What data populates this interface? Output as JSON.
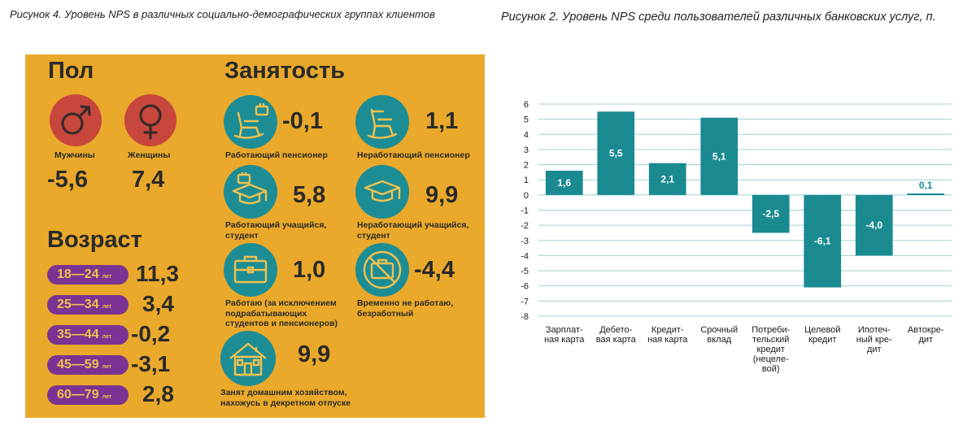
{
  "captions": {
    "left": "Рисунок 4. Уровень NPS в различных социально-демографических группах клиентов",
    "right": "Рисунок 2. Уровень NPS среди пользователей различных банковских услуг, п."
  },
  "gender": {
    "title": "Пол",
    "items": [
      {
        "label": "Мужчины",
        "value": "-5,6",
        "icon": "male-icon"
      },
      {
        "label": "Женщины",
        "value": "7,4",
        "icon": "female-icon"
      }
    ]
  },
  "age": {
    "title": "Возраст",
    "unit": "лет",
    "items": [
      {
        "range": "18—24",
        "value": "11,3"
      },
      {
        "range": "25—34",
        "value": "3,4"
      },
      {
        "range": "35—44",
        "value": "-0,2"
      },
      {
        "range": "45—59",
        "value": "-3,1"
      },
      {
        "range": "60—79",
        "value": "2,8"
      }
    ]
  },
  "employment": {
    "title": "Занятость",
    "items": [
      {
        "label": [
          "Работающий пенсионер"
        ],
        "value": "-0,1",
        "icon": "rocking-chair-briefcase-icon"
      },
      {
        "label": [
          "Неработающий пенсионер"
        ],
        "value": "1,1",
        "icon": "rocking-chair-icon"
      },
      {
        "label": [
          "Работающий учащийся,",
          "студент"
        ],
        "value": "5,8",
        "icon": "graduation-cap-briefcase-icon"
      },
      {
        "label": [
          "Неработающий учащийся,",
          "студент"
        ],
        "value": "9,9",
        "icon": "graduation-cap-icon"
      },
      {
        "label": [
          "Работаю (за исключением",
          "подрабатывающих",
          "студентов и пенсионеров)"
        ],
        "value": "1,0",
        "icon": "briefcase-icon"
      },
      {
        "label": [
          "Временно не работаю,",
          "безработный"
        ],
        "value": "-4,4",
        "icon": "crossed-briefcase-icon"
      },
      {
        "label": [
          "Занят домашним хозяйством,",
          "нахожусь в декретном отпуске"
        ],
        "value": "9,9",
        "icon": "house-icon"
      }
    ]
  },
  "colors": {
    "panel": "#eaa92a",
    "gender_circle": "#c8473d",
    "employment_circle": "#1d8d95",
    "age_pill": "#7a3392",
    "bar": "#1a8a91"
  },
  "chart_data": {
    "type": "bar",
    "title": "",
    "xlabel": "",
    "ylabel": "",
    "ylim": [
      -8,
      6
    ],
    "yticks": [
      6,
      5,
      4,
      3,
      2,
      1,
      0,
      -1,
      -2,
      -3,
      -4,
      -5,
      -6,
      -7,
      -8
    ],
    "grid": true,
    "categories": [
      [
        "Зарплат-",
        "ная карта"
      ],
      [
        "Дебето-",
        "вая карта"
      ],
      [
        "Кредит-",
        "ная карта"
      ],
      [
        "Срочный",
        "вклад"
      ],
      [
        "Потреби-",
        "тельский",
        "кредит",
        "(нецеле-",
        "вой)"
      ],
      [
        "Целевой",
        "кредит"
      ],
      [
        "Ипотеч-",
        "ный кре-",
        "дит"
      ],
      [
        "Автокре-",
        "дит"
      ]
    ],
    "values": [
      1.6,
      5.5,
      2.1,
      5.1,
      -2.5,
      -6.1,
      -4.0,
      0.1
    ],
    "value_labels": [
      "1,6",
      "5,5",
      "2,1",
      "5,1",
      "-2,5",
      "-6,1",
      "-4,0",
      "0,1"
    ]
  }
}
